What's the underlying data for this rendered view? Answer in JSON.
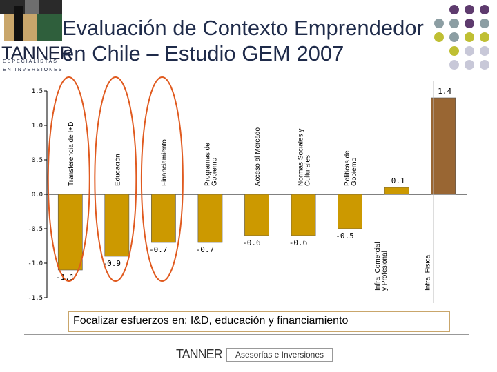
{
  "slide": {
    "title": "Evaluación de Contexto Emprendedor\nen Chile – Estudio GEM 2007",
    "note": "Focalizar esfuerzos en: I&D, educación y financiamiento",
    "footer_logo": "TANNER",
    "footer_text": "Asesorías e Inversiones"
  },
  "logo": {
    "word": "TANNER",
    "line1": "ESPECIALISTAS",
    "line2": "EN INVERSIONES"
  },
  "colors": {
    "bar_main": "#cc9900",
    "bar_highlight": "#996633",
    "circle": "#e05a1f",
    "title": "#1f2b4a",
    "dots": [
      "#5e3b6e",
      "#8c9ea3",
      "#bfbf33",
      "#c8c8d8"
    ]
  },
  "chart_data": {
    "type": "bar",
    "categories": [
      "Transferencia de I+D",
      "Educación",
      "Financiamiento",
      "Programas de Gobierno",
      "Acceso al Mercado",
      "Normas Sociales y Culturales",
      "Políticas de Gobierno",
      "Infra. Comercial y Profesional",
      "Infra. Física"
    ],
    "values": [
      -1.1,
      -0.9,
      -0.7,
      -0.7,
      -0.6,
      -0.6,
      -0.5,
      0.1,
      1.4
    ],
    "data_labels": [
      "-1.1",
      "-0.9",
      "-0.7",
      "-0.7",
      "-0.6",
      "-0.6",
      "-0.5",
      "0.1",
      "1.4"
    ],
    "category_labels": [
      [
        "Transferencia de I+D"
      ],
      [
        "Educación"
      ],
      [
        "Financiamiento"
      ],
      [
        "Programas de",
        "Gobierno"
      ],
      [
        "Acceso al Mercado"
      ],
      [
        "Normas Sociales y",
        "Culturales"
      ],
      [
        "Políticas de",
        "Gobierno"
      ],
      [
        "Infra. Comercial",
        "y Profesional"
      ],
      [
        "Infra. Física"
      ]
    ],
    "yticks": [
      "1.5",
      "1.0",
      "0.5",
      "0.0",
      "-0.5",
      "-1.0",
      "-1.5"
    ],
    "ytick_values": [
      1.5,
      1.0,
      0.5,
      0.0,
      -0.5,
      -1.0,
      -1.5
    ],
    "ylim": [
      -1.5,
      1.5
    ],
    "highlighted": [
      0,
      1,
      2
    ],
    "title": "",
    "xlabel": "",
    "ylabel": ""
  }
}
